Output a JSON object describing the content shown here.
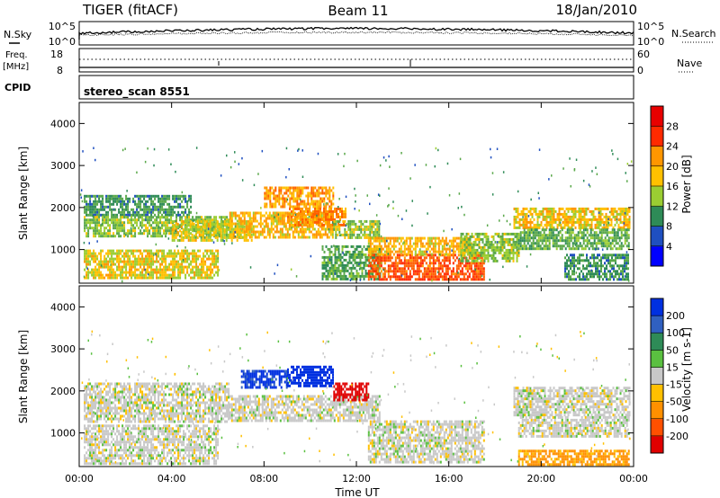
{
  "header": {
    "radar": "TIGER (fitACF)",
    "beam": "Beam 11",
    "date": "18/Jan/2010"
  },
  "top_panels": {
    "nsky_label": "N.Sky",
    "nsky_ticks": [
      "10^5",
      "10^0"
    ],
    "nsearch_label": "N.Search",
    "nsearch_ticks": [
      "10^5",
      "10^0"
    ],
    "freq_label": "Freq.",
    "freq_unit": "[MHz]",
    "freq_ticks": [
      "18",
      "8"
    ],
    "nave_label": "Nave",
    "nave_ticks": [
      "60",
      "0"
    ],
    "cpid_label": "CPID",
    "cpid_value": "stereo_scan 8551"
  },
  "colors": {
    "power": [
      "#0000ff",
      "#1f4fc0",
      "#2e8b57",
      "#5aa84a",
      "#9acd32",
      "#ffc000",
      "#ff9600",
      "#ff6000",
      "#ff2a00",
      "#e80000"
    ],
    "velocity": [
      "#0030e0",
      "#3060c0",
      "#2e8b57",
      "#5ac040",
      "#c8c8c8",
      "#ffc000",
      "#ff9000",
      "#ff5000",
      "#e00000"
    ],
    "gray": "#c0c0c0"
  },
  "chart_data": [
    {
      "type": "heatmap",
      "title": "Power",
      "xlabel": "",
      "ylabel": "Slant Range [km]",
      "xlim": [
        0,
        24
      ],
      "ylim": [
        200,
        4500
      ],
      "y_ticks": [
        1000,
        2000,
        3000,
        4000
      ],
      "colorbar_label": "Power [dB]",
      "colorbar_ticks": [
        "4",
        "8",
        "12",
        "16",
        "20",
        "24",
        "28"
      ],
      "colorbar_range": [
        0,
        32
      ],
      "regions": [
        {
          "x": [
            0.2,
            4.8
          ],
          "y": [
            1800,
            2300
          ],
          "value": 8
        },
        {
          "x": [
            0.2,
            6.5
          ],
          "y": [
            1300,
            1800
          ],
          "value": 13
        },
        {
          "x": [
            0.2,
            6.0
          ],
          "y": [
            300,
            1000
          ],
          "value": 17
        },
        {
          "x": [
            4.0,
            7.5
          ],
          "y": [
            1200,
            1700
          ],
          "value": 16
        },
        {
          "x": [
            6.5,
            11.0
          ],
          "y": [
            1300,
            1900
          ],
          "value": 19
        },
        {
          "x": [
            8.0,
            11.0
          ],
          "y": [
            2000,
            2500
          ],
          "value": 21
        },
        {
          "x": [
            9.0,
            11.5
          ],
          "y": [
            1600,
            2000
          ],
          "value": 22
        },
        {
          "x": [
            11.0,
            13.0
          ],
          "y": [
            1300,
            1700
          ],
          "value": 14
        },
        {
          "x": [
            10.5,
            13.0
          ],
          "y": [
            300,
            1100
          ],
          "value": 10
        },
        {
          "x": [
            12.5,
            17.5
          ],
          "y": [
            300,
            900
          ],
          "value": 26
        },
        {
          "x": [
            12.5,
            17.0
          ],
          "y": [
            900,
            1300
          ],
          "value": 19
        },
        {
          "x": [
            16.5,
            19.0
          ],
          "y": [
            700,
            1400
          ],
          "value": 13
        },
        {
          "x": [
            18.8,
            23.8
          ],
          "y": [
            1500,
            2000
          ],
          "value": 18
        },
        {
          "x": [
            19.0,
            23.8
          ],
          "y": [
            1000,
            1500
          ],
          "value": 11
        },
        {
          "x": [
            21.0,
            23.8
          ],
          "y": [
            300,
            900
          ],
          "value": 8
        }
      ]
    },
    {
      "type": "heatmap",
      "title": "Velocity",
      "xlabel": "Time UT",
      "ylabel": "Slant Range [km]",
      "xlim": [
        0,
        24
      ],
      "ylim": [
        200,
        4500
      ],
      "x_ticks": [
        "00:00",
        "04:00",
        "08:00",
        "12:00",
        "16:00",
        "20:00",
        "00:00"
      ],
      "y_ticks": [
        1000,
        2000,
        3000,
        4000
      ],
      "colorbar_label": "Velocity [m s-1]",
      "colorbar_ticks": [
        "200",
        "100",
        "50",
        "15",
        "-15",
        "-50",
        "-100",
        "-200"
      ],
      "colorbar_range": [
        -250,
        250
      ],
      "regions": [
        {
          "x": [
            0.2,
            6.5
          ],
          "y": [
            1300,
            2200
          ],
          "value": 0
        },
        {
          "x": [
            0.2,
            6.0
          ],
          "y": [
            300,
            1200
          ],
          "value": 0
        },
        {
          "x": [
            6.5,
            13.0
          ],
          "y": [
            1300,
            1900
          ],
          "value": 0
        },
        {
          "x": [
            7.0,
            9.0
          ],
          "y": [
            2100,
            2500
          ],
          "value": 160
        },
        {
          "x": [
            9.0,
            11.0
          ],
          "y": [
            2100,
            2600
          ],
          "value": 200
        },
        {
          "x": [
            11.0,
            12.5
          ],
          "y": [
            1800,
            2200
          ],
          "value": -200
        },
        {
          "x": [
            12.5,
            17.5
          ],
          "y": [
            300,
            1300
          ],
          "value": 0
        },
        {
          "x": [
            18.8,
            23.8
          ],
          "y": [
            1400,
            2100
          ],
          "value": 0
        },
        {
          "x": [
            19.0,
            23.8
          ],
          "y": [
            900,
            1400
          ],
          "value": 0
        },
        {
          "x": [
            19.0,
            23.8
          ],
          "y": [
            250,
            600
          ],
          "value": -60
        }
      ]
    }
  ]
}
